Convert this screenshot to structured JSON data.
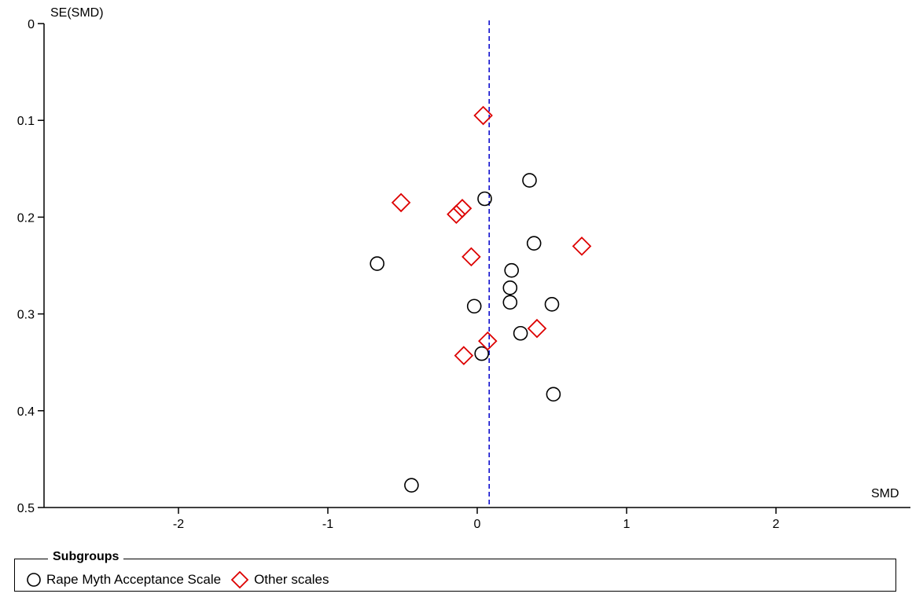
{
  "chart_data": {
    "type": "scatter",
    "title": "",
    "xlabel": "SMD",
    "ylabel": "SE(SMD)",
    "xlim": [
      -2.9,
      2.9
    ],
    "ylim": [
      0,
      0.5
    ],
    "y_reversed": true,
    "x_ticks": [
      -2,
      -1,
      0,
      1,
      2
    ],
    "x_tick_labels": [
      "-2",
      "-1",
      "0",
      "1",
      "2"
    ],
    "y_ticks": [
      0,
      0.1,
      0.2,
      0.3,
      0.4,
      0.5
    ],
    "y_tick_labels": [
      "0",
      "0.1",
      "0.2",
      "0.3",
      "0.4",
      "0.5"
    ],
    "reference_line": {
      "x": 0.08,
      "style": "dashed",
      "color": "#0000cc"
    },
    "grid": false,
    "legend": {
      "title": "Subgroups",
      "placement": "bottom"
    },
    "series": [
      {
        "name": "Rape Myth Acceptance Scale",
        "marker": "circle",
        "color": "#000000",
        "points": [
          {
            "x": 0.35,
            "y": 0.162
          },
          {
            "x": 0.05,
            "y": 0.181
          },
          {
            "x": 0.38,
            "y": 0.227
          },
          {
            "x": -0.67,
            "y": 0.248
          },
          {
            "x": 0.23,
            "y": 0.255
          },
          {
            "x": 0.22,
            "y": 0.273
          },
          {
            "x": 0.22,
            "y": 0.288
          },
          {
            "x": 0.5,
            "y": 0.29
          },
          {
            "x": -0.02,
            "y": 0.292
          },
          {
            "x": 0.29,
            "y": 0.32
          },
          {
            "x": 0.03,
            "y": 0.341
          },
          {
            "x": 0.51,
            "y": 0.383
          },
          {
            "x": -0.44,
            "y": 0.477
          }
        ]
      },
      {
        "name": "Other scales",
        "marker": "diamond",
        "color": "#dd0000",
        "points": [
          {
            "x": 0.04,
            "y": 0.095
          },
          {
            "x": -0.51,
            "y": 0.185
          },
          {
            "x": -0.1,
            "y": 0.191
          },
          {
            "x": -0.14,
            "y": 0.197
          },
          {
            "x": 0.7,
            "y": 0.23
          },
          {
            "x": -0.04,
            "y": 0.241
          },
          {
            "x": 0.4,
            "y": 0.315
          },
          {
            "x": 0.07,
            "y": 0.328
          },
          {
            "x": -0.09,
            "y": 0.343
          }
        ]
      }
    ]
  }
}
